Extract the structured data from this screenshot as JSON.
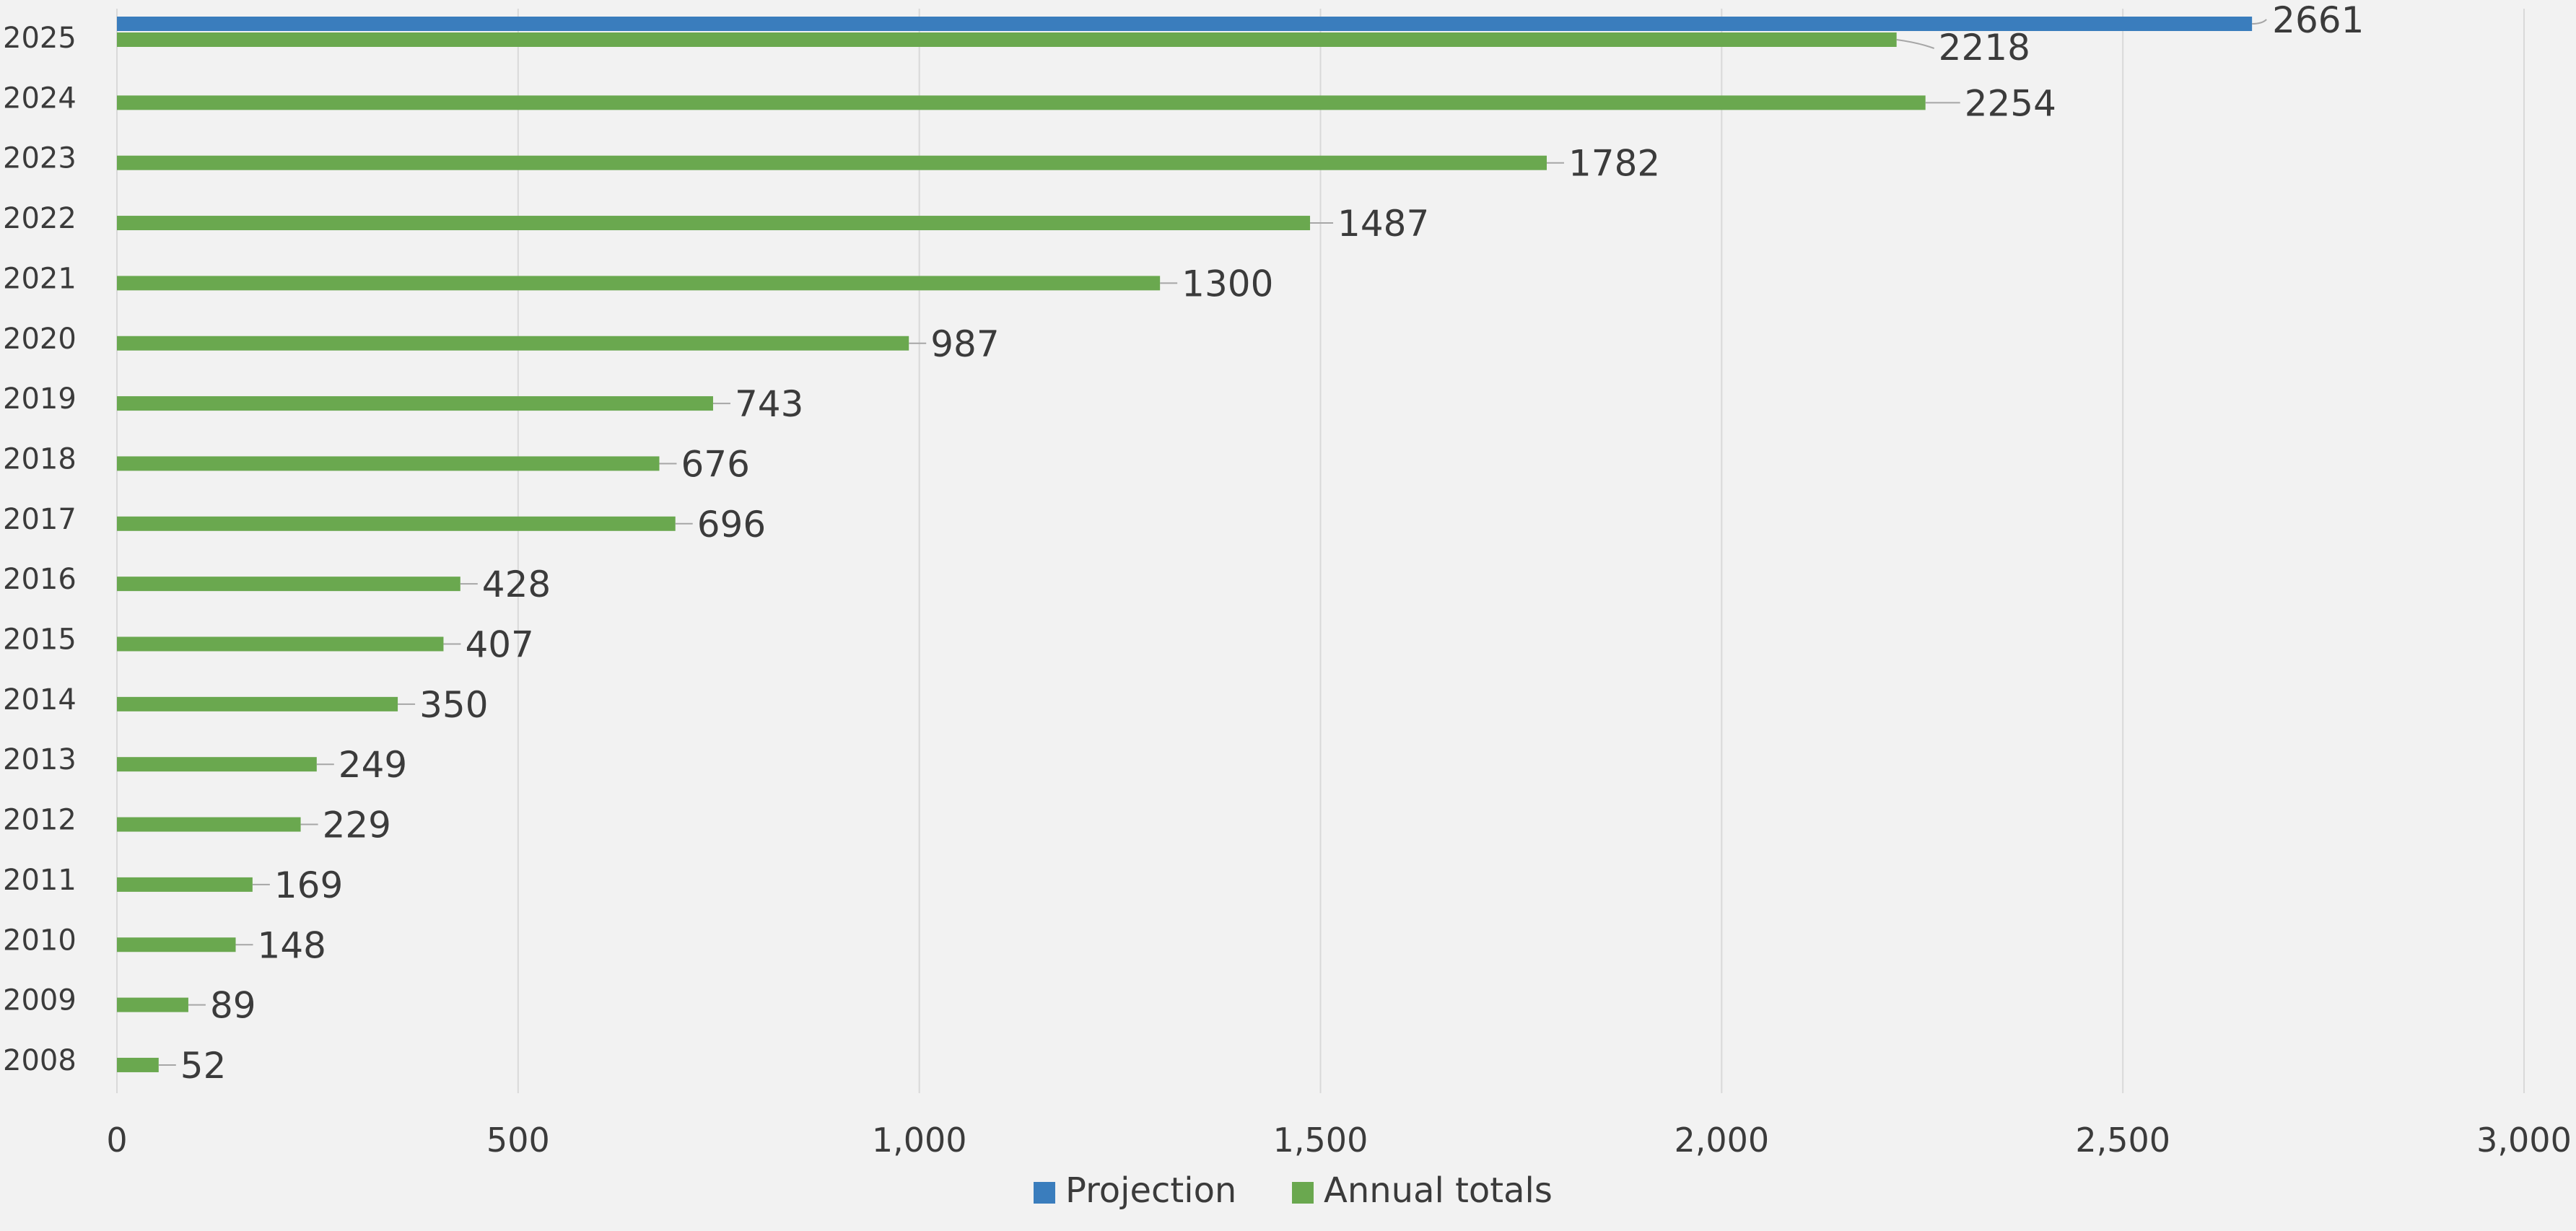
{
  "chart_data": {
    "type": "bar",
    "orientation": "horizontal",
    "title": "",
    "xlabel": "",
    "ylabel": "",
    "xlim": [
      0,
      3000
    ],
    "x_ticks": [
      0,
      500,
      1000,
      1500,
      2000,
      2500,
      3000
    ],
    "x_tick_labels": [
      "0",
      "500",
      "1,000",
      "1,500",
      "2,000",
      "2,500",
      "3,000"
    ],
    "grid": "vertical",
    "legend_position": "bottom",
    "categories": [
      "2025",
      "2024",
      "2023",
      "2022",
      "2021",
      "2020",
      "2019",
      "2018",
      "2017",
      "2016",
      "2015",
      "2014",
      "2013",
      "2012",
      "2011",
      "2010",
      "2009",
      "2008"
    ],
    "series": [
      {
        "name": "Projection",
        "color": "#3a7dbd",
        "values": [
          2661,
          null,
          null,
          null,
          null,
          null,
          null,
          null,
          null,
          null,
          null,
          null,
          null,
          null,
          null,
          null,
          null,
          null
        ]
      },
      {
        "name": "Annual totals",
        "color": "#6aa84f",
        "values": [
          2218,
          2254,
          1782,
          1487,
          1300,
          987,
          743,
          676,
          696,
          428,
          407,
          350,
          249,
          229,
          169,
          148,
          89,
          52
        ]
      }
    ]
  }
}
